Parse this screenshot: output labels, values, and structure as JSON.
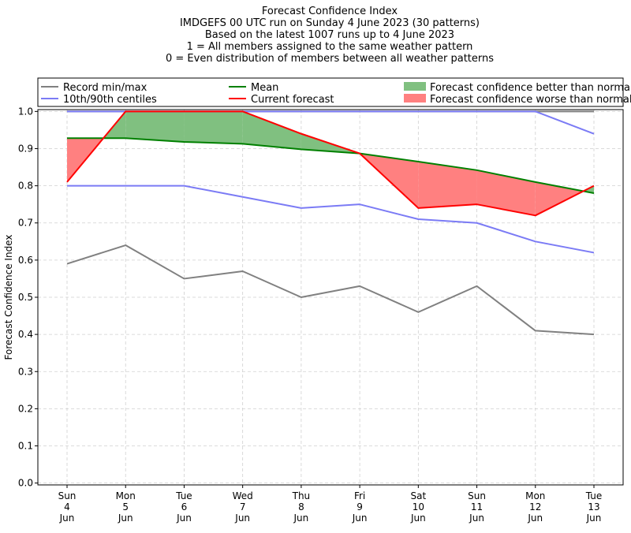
{
  "chart_data": {
    "type": "line",
    "title": [
      "Forecast Confidence Index",
      "IMDGEFS 00 UTC run on Sunday 4 June 2023 (30 patterns)",
      "Based on the latest 1007 runs up to 4 June 2023",
      "1 = All members assigned to the same weather pattern",
      "0 = Even distribution of members between all weather patterns"
    ],
    "ylabel": "Forecast Confidence Index",
    "xlabel": "",
    "ylim": [
      -0.005,
      1.005
    ],
    "yticks": [
      "0.0",
      "0.1",
      "0.2",
      "0.3",
      "0.4",
      "0.5",
      "0.6",
      "0.7",
      "0.8",
      "0.9",
      "1.0"
    ],
    "grid": true,
    "legend_placement": "top",
    "categories": [
      [
        "Sun",
        "4",
        "Jun"
      ],
      [
        "Mon",
        "5",
        "Jun"
      ],
      [
        "Tue",
        "6",
        "Jun"
      ],
      [
        "Wed",
        "7",
        "Jun"
      ],
      [
        "Thu",
        "8",
        "Jun"
      ],
      [
        "Fri",
        "9",
        "Jun"
      ],
      [
        "Sat",
        "10",
        "Jun"
      ],
      [
        "Sun",
        "11",
        "Jun"
      ],
      [
        "Mon",
        "12",
        "Jun"
      ],
      [
        "Tue",
        "13",
        "Jun"
      ]
    ],
    "series": [
      {
        "name": "Record min/max",
        "role": "record_min",
        "color": "#808080",
        "values": [
          0.59,
          0.64,
          0.55,
          0.57,
          0.5,
          0.53,
          0.46,
          0.53,
          0.41,
          0.4
        ]
      },
      {
        "name": "Record min/max",
        "role": "record_max",
        "color": "#808080",
        "values": [
          1.0,
          1.0,
          1.0,
          1.0,
          1.0,
          1.0,
          1.0,
          1.0,
          1.0,
          1.0
        ]
      },
      {
        "name": "10th/90th centiles",
        "role": "p10",
        "color": "#7b7bf5",
        "values": [
          0.8,
          0.8,
          0.8,
          0.77,
          0.74,
          0.75,
          0.71,
          0.7,
          0.65,
          0.62
        ]
      },
      {
        "name": "10th/90th centiles",
        "role": "p90",
        "color": "#7b7bf5",
        "values": [
          1.0,
          1.0,
          1.0,
          1.0,
          1.0,
          1.0,
          1.0,
          1.0,
          1.0,
          0.94
        ]
      },
      {
        "name": "Mean",
        "role": "mean",
        "color": "#008000",
        "values": [
          0.928,
          0.928,
          0.918,
          0.913,
          0.898,
          0.887,
          0.865,
          0.842,
          0.81,
          0.78
        ]
      },
      {
        "name": "Current forecast",
        "role": "current",
        "color": "#ff0000",
        "values": [
          0.81,
          1.0,
          1.0,
          1.0,
          0.94,
          0.887,
          0.74,
          0.75,
          0.72,
          0.8
        ]
      }
    ],
    "fill_better_color": "#80c080",
    "fill_worse_color": "#ff8080"
  },
  "legend": {
    "record": "Record min/max",
    "centiles": "10th/90th centiles",
    "mean": "Mean",
    "current": "Current forecast",
    "better": "Forecast confidence better than normal",
    "worse": "Forecast confidence worse than normal"
  }
}
